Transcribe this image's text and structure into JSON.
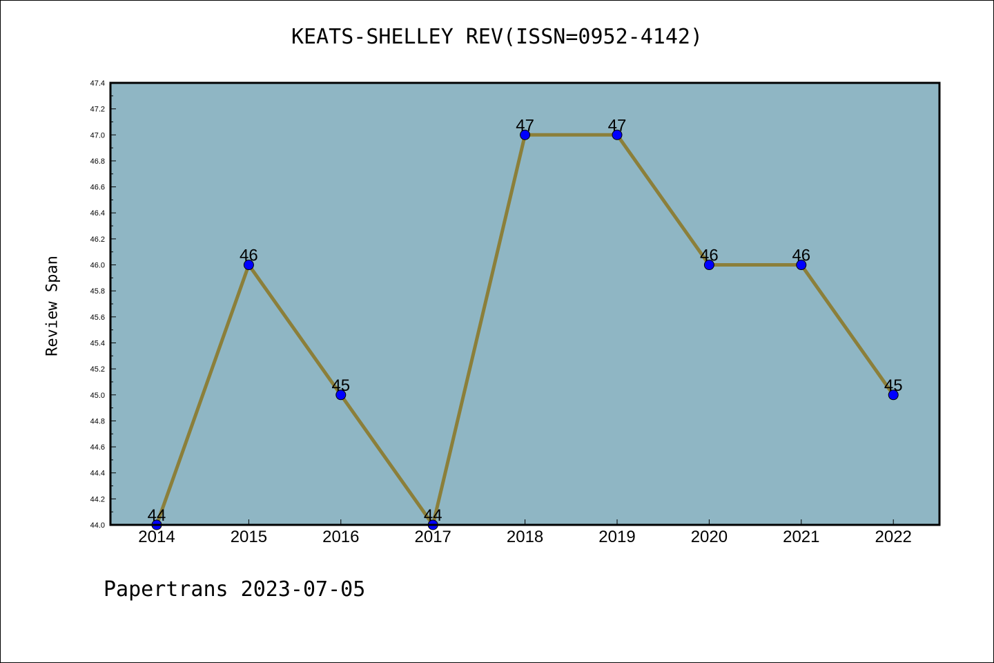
{
  "chart_data": {
    "type": "line",
    "title": "KEATS-SHELLEY REV(ISSN=0952-4142)",
    "xlabel": "",
    "ylabel": "Review Span",
    "categories": [
      "2014",
      "2015",
      "2016",
      "2017",
      "2018",
      "2019",
      "2020",
      "2021",
      "2022"
    ],
    "values": [
      44,
      46,
      45,
      44,
      47,
      47,
      46,
      46,
      45
    ],
    "data_labels": [
      "44",
      "46",
      "45",
      "44",
      "47",
      "47",
      "46",
      "46",
      "45"
    ],
    "ylim": [
      44.0,
      47.4
    ],
    "yticks": [
      "44.0",
      "44.2",
      "44.4",
      "44.6",
      "44.8",
      "45.0",
      "45.2",
      "45.4",
      "45.6",
      "45.8",
      "46.0",
      "46.2",
      "46.4",
      "46.6",
      "46.8",
      "47.0",
      "47.2",
      "47.4"
    ],
    "grid": false,
    "colors": {
      "plot_background": "#8fb6c4",
      "line": "#8b7f3a",
      "marker": "#0000ff"
    }
  },
  "footer": "Papertrans 2023-07-05"
}
